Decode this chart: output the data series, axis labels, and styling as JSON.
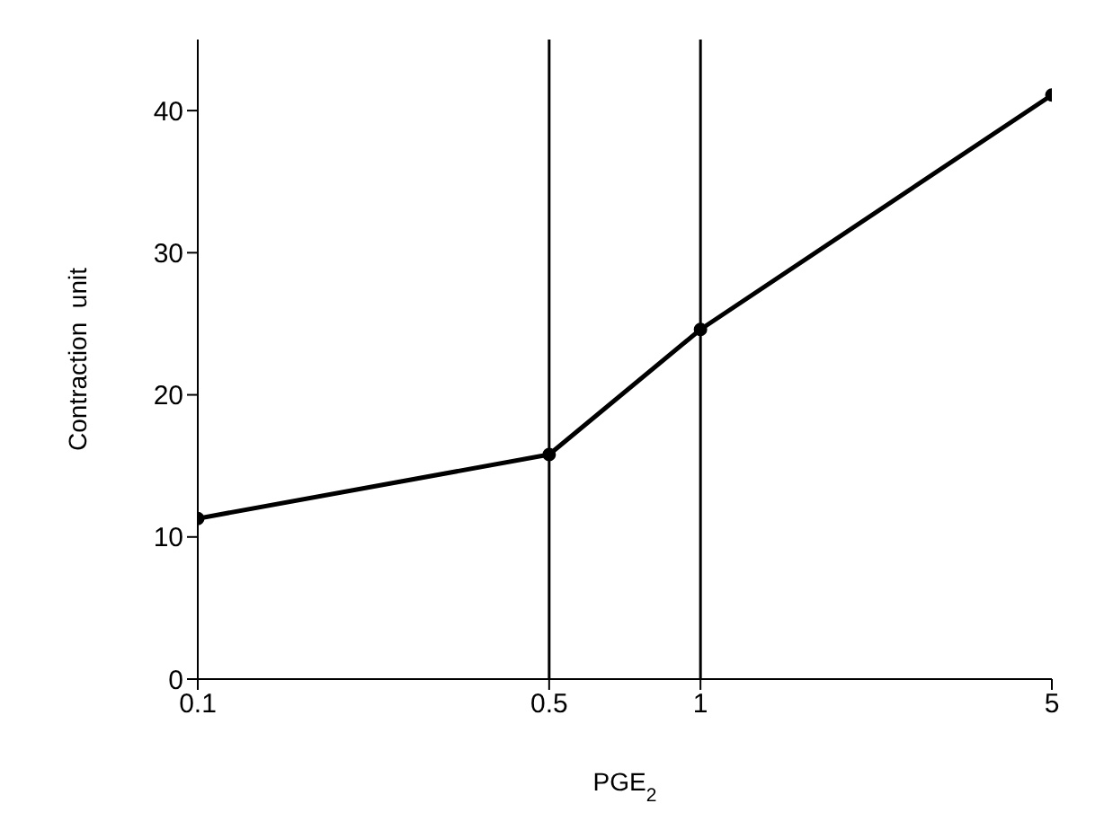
{
  "chart_data": {
    "type": "line",
    "xlabel": "PGE$_{2}$",
    "ylabel": "Contraction  unit",
    "x": [
      0.1,
      0.5,
      1,
      5
    ],
    "series": [
      {
        "color": "#000000",
        "values": [
          11.3,
          15.8,
          24.6,
          41.1
        ]
      }
    ],
    "log": "x",
    "xlim": [
      0.1,
      5
    ],
    "xticks": [
      0.1,
      0.5,
      1,
      5
    ],
    "ylim": [
      0,
      45
    ],
    "yticks": [
      0,
      10,
      20,
      30,
      40
    ],
    "ref_lines": [
      {
        "axis": "x",
        "value": 0.5,
        "color": "#000000"
      },
      {
        "axis": "x",
        "value": 1,
        "color": "#000000"
      }
    ],
    "grid": false,
    "legend": false,
    "marker": "circle",
    "line_style": "solid"
  }
}
